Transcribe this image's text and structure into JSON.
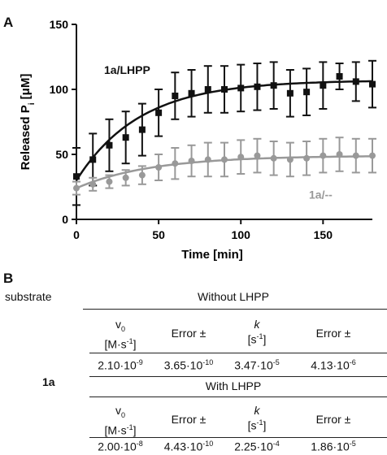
{
  "panel_a": {
    "label": "A"
  },
  "panel_b": {
    "label": "B"
  },
  "chart_data": {
    "type": "scatter",
    "xlabel": "Time [min]",
    "ylabel_main": "Released P",
    "ylabel_sub": "i",
    "ylabel_unit": " [μM]",
    "xlim": [
      0,
      180
    ],
    "ylim": [
      0,
      150
    ],
    "xticks": [
      0,
      50,
      100,
      150
    ],
    "yticks": [
      0,
      50,
      100,
      150
    ],
    "series": [
      {
        "name": "1a/LHPP",
        "color": "#111111",
        "marker": "square",
        "x": [
          0,
          10,
          20,
          30,
          40,
          50,
          60,
          70,
          80,
          90,
          100,
          110,
          120,
          130,
          140,
          150,
          160,
          170,
          180
        ],
        "y": [
          33,
          46,
          57,
          63,
          69,
          82,
          95,
          97,
          100,
          100,
          101,
          102,
          103,
          97,
          98,
          103,
          110,
          106,
          104
        ],
        "err": [
          22,
          20,
          20,
          20,
          20,
          18,
          18,
          18,
          18,
          18,
          18,
          18,
          18,
          18,
          18,
          18,
          10,
          15,
          18
        ],
        "fit_y0": 30,
        "fit_ymax": 107,
        "fit_k": 0.026
      },
      {
        "name": "1a/--",
        "color": "#999999",
        "marker": "circle",
        "x": [
          0,
          10,
          20,
          30,
          40,
          50,
          60,
          70,
          80,
          90,
          100,
          110,
          120,
          130,
          140,
          150,
          160,
          170,
          180
        ],
        "y": [
          24,
          27,
          29,
          32,
          34,
          40,
          43,
          45,
          46,
          46,
          48,
          49,
          47,
          46,
          47,
          49,
          50,
          49,
          49
        ],
        "err": [
          5,
          5,
          5,
          6,
          7,
          10,
          12,
          12,
          13,
          13,
          13,
          13,
          13,
          13,
          13,
          13,
          13,
          13,
          13
        ],
        "fit_y0": 24,
        "fit_ymax": 49,
        "fit_k": 0.022
      }
    ]
  },
  "table": {
    "substrate_header": "substrate",
    "group1_title": "Without LHPP",
    "group2_title": "With LHPP",
    "row_label": "1a",
    "col_v0": "v",
    "col_v0_sub": "0",
    "col_v0_unit": "[M·s",
    "col_v0_unit_sup": "-1",
    "col_v0_unit_close": "]",
    "col_error": "Error ±",
    "col_k": "k",
    "col_k_unit": "[s",
    "col_k_unit_sup": "-1",
    "col_k_unit_close": "]",
    "without": [
      {
        "mant": "2.10·10",
        "exp": "-9"
      },
      {
        "mant": "3.65·10",
        "exp": "-10"
      },
      {
        "mant": "3.47·10",
        "exp": "-5"
      },
      {
        "mant": "4.13·10",
        "exp": "-6"
      }
    ],
    "with": [
      {
        "mant": "2.00·10",
        "exp": "-8"
      },
      {
        "mant": "4.43·10",
        "exp": "-10"
      },
      {
        "mant": "2.25·10",
        "exp": "-4"
      },
      {
        "mant": "1.86·10",
        "exp": "-5"
      }
    ]
  }
}
